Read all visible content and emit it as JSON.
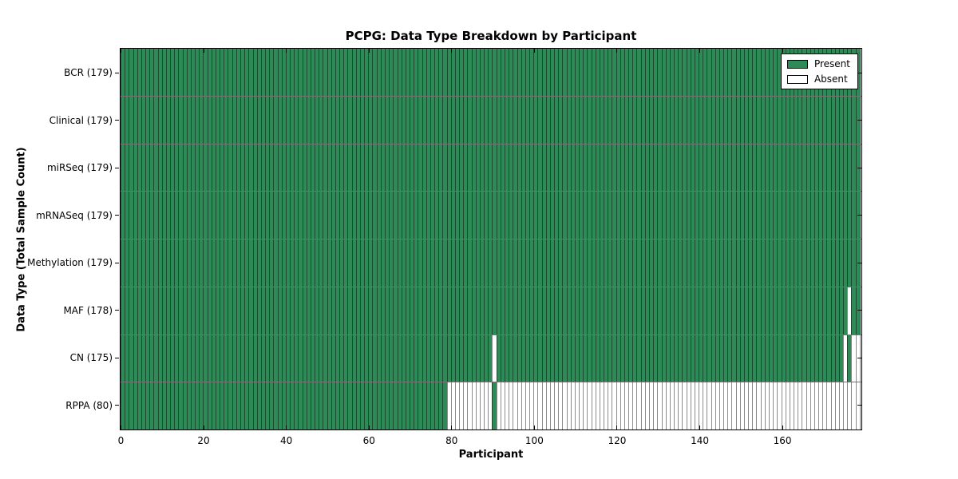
{
  "chart_data": {
    "type": "heatmap",
    "title": "PCPG: Data Type Breakdown by Participant",
    "xlabel": "Participant",
    "ylabel": "Data Type (Total Sample Count)",
    "n_participants": 179,
    "x_ticks": [
      0,
      20,
      40,
      60,
      80,
      100,
      120,
      140,
      160
    ],
    "x_range": [
      0,
      179
    ],
    "grid": false,
    "legend_position": "upper right",
    "legend": {
      "present": "Present",
      "absent": "Absent"
    },
    "colors": {
      "present": "#2e8b57",
      "absent": "#ffffff"
    },
    "rows": [
      {
        "data_type": "BCR",
        "label": "BCR (179)",
        "present_count": 179,
        "absent_ranges": []
      },
      {
        "data_type": "Clinical",
        "label": "Clinical (179)",
        "present_count": 179,
        "absent_ranges": []
      },
      {
        "data_type": "miRSeq",
        "label": "miRSeq (179)",
        "present_count": 179,
        "absent_ranges": []
      },
      {
        "data_type": "mRNASeq",
        "label": "mRNASeq (179)",
        "present_count": 179,
        "absent_ranges": []
      },
      {
        "data_type": "Methylation",
        "label": "Methylation (179)",
        "present_count": 179,
        "absent_ranges": []
      },
      {
        "data_type": "MAF",
        "label": "MAF (178)",
        "present_count": 178,
        "absent_ranges": [
          [
            176,
            176
          ]
        ]
      },
      {
        "data_type": "CN",
        "label": "CN (175)",
        "present_count": 175,
        "absent_ranges": [
          [
            90,
            90
          ],
          [
            175,
            175
          ],
          [
            177,
            178
          ]
        ]
      },
      {
        "data_type": "RPPA",
        "label": "RPPA (80)",
        "present_count": 80,
        "absent_ranges": [
          [
            79,
            89
          ],
          [
            91,
            178
          ]
        ]
      }
    ]
  }
}
